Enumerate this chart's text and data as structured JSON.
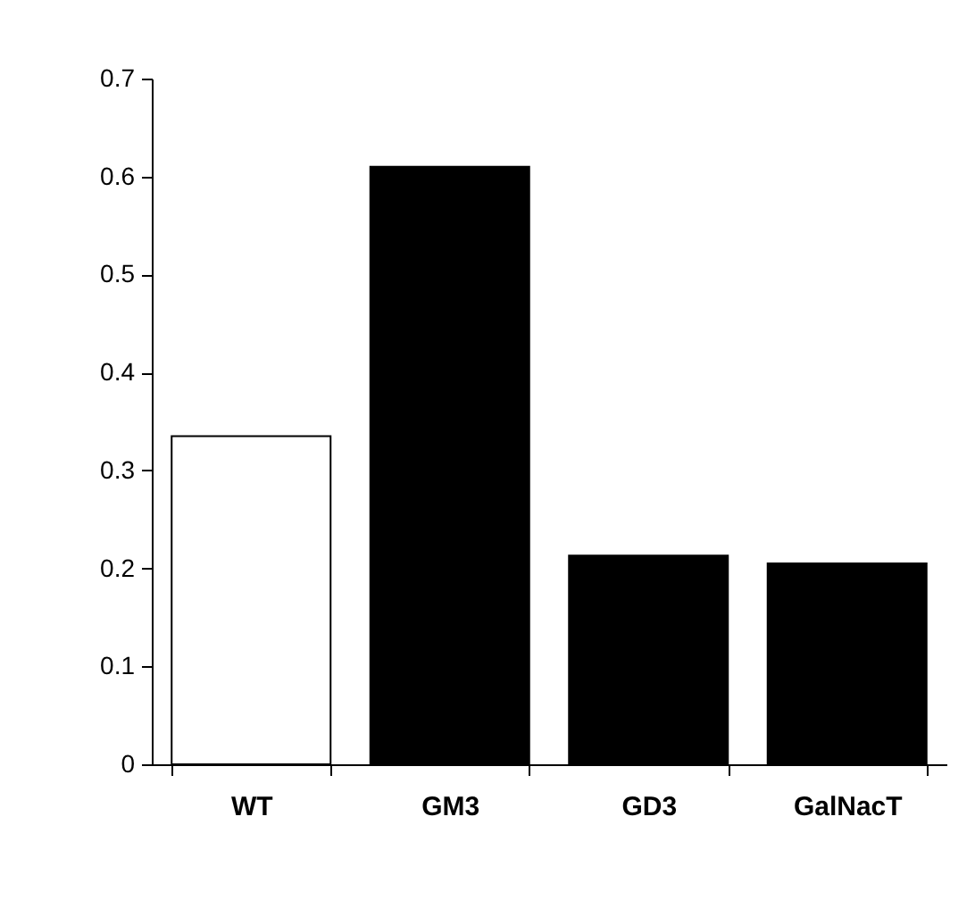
{
  "chart_data": {
    "type": "bar",
    "categories": [
      "WT",
      "GM3",
      "GD3",
      "GalNacT"
    ],
    "values": [
      0.335,
      0.61,
      0.213,
      0.205
    ],
    "colors": [
      "#ffffff",
      "#000000",
      "#000000",
      "#000000"
    ],
    "ylim": [
      0,
      0.7
    ],
    "yticks": [
      0,
      0.1,
      0.2,
      0.3,
      0.4,
      0.5,
      0.6,
      0.7
    ],
    "grid": false
  }
}
